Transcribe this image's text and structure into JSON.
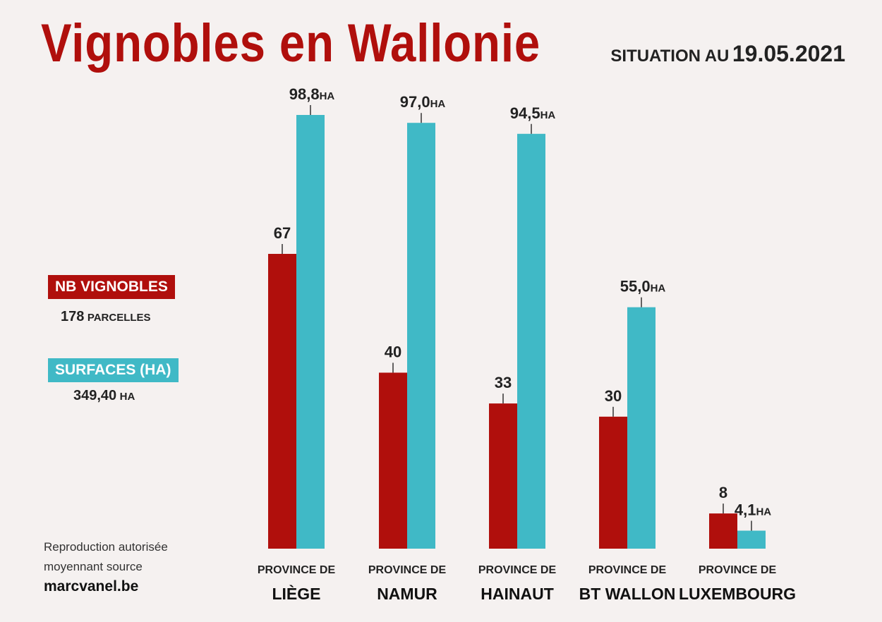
{
  "header": {
    "title": "Vignobles en Wallonie",
    "situation_label": "SITUATION AU",
    "situation_date": "19.05.2021"
  },
  "legend": {
    "vignobles_label": "NB VIGNOBLES",
    "vignobles_total": "178",
    "vignobles_unit": "PARCELLES",
    "surfaces_label": "SURFACES (HA)",
    "surfaces_total": "349,40",
    "surfaces_unit": "HA"
  },
  "footer": {
    "line1": "Reproduction autorisée",
    "line2": "moyennant source",
    "site": "marcvanel.be"
  },
  "colors": {
    "vignobles": "#b00f0c",
    "surfaces": "#40b9c6",
    "background": "#f5f1f0"
  },
  "chart_data": {
    "type": "bar",
    "categories": [
      {
        "prefix": "PROVINCE DE",
        "name": "LIÈGE"
      },
      {
        "prefix": "PROVINCE DE",
        "name": "NAMUR"
      },
      {
        "prefix": "PROVINCE DE",
        "name": "HAINAUT"
      },
      {
        "prefix": "PROVINCE DE",
        "name": "BT WALLON"
      },
      {
        "prefix": "PROVINCE DE",
        "name": "LUXEMBOURG"
      }
    ],
    "series": [
      {
        "name": "NB VIGNOBLES",
        "values": [
          67,
          40,
          33,
          30,
          8
        ],
        "labels": [
          "67",
          "40",
          "33",
          "30",
          "8"
        ],
        "unit": ""
      },
      {
        "name": "SURFACES (HA)",
        "values": [
          98.8,
          97.0,
          94.5,
          55.0,
          4.1
        ],
        "labels": [
          "98,8",
          "97,0",
          "94,5",
          "55,0",
          "4,1"
        ],
        "unit": "HA"
      }
    ],
    "grid": false,
    "legend_position": "left"
  }
}
